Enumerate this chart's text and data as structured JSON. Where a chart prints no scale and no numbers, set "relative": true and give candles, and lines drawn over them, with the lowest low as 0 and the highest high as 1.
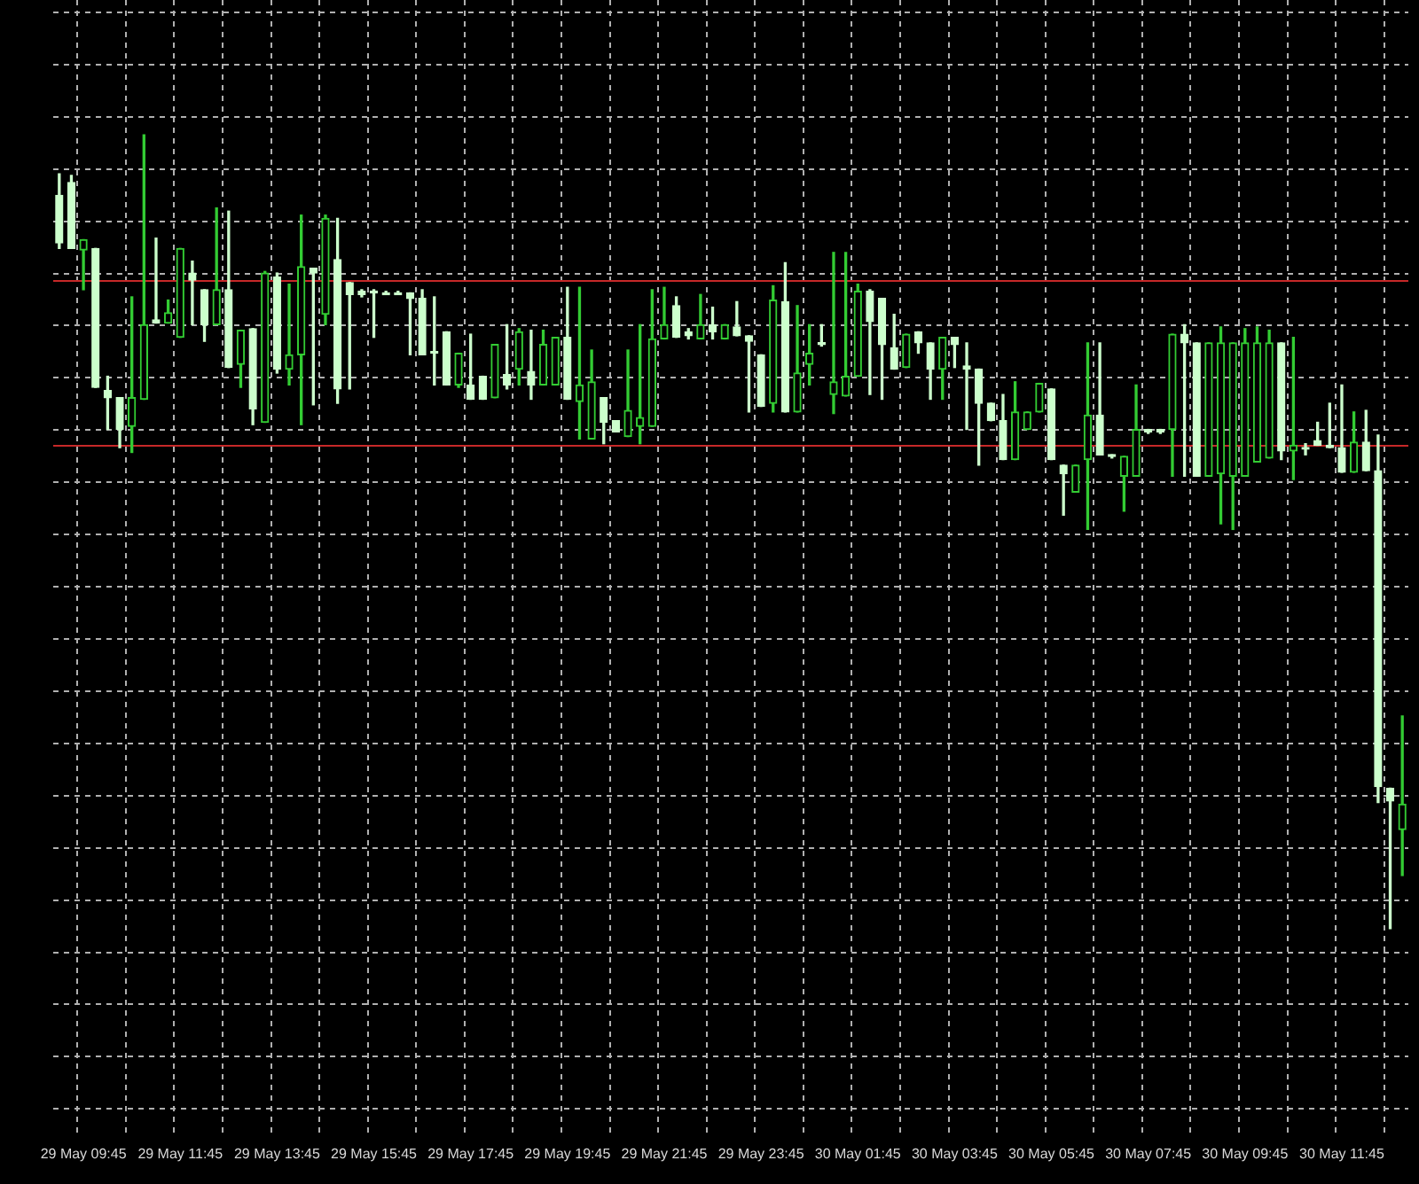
{
  "chart_data": {
    "type": "candlestick",
    "relative": true,
    "grid": true,
    "categories": [
      null,
      null,
      "29 May 09:45",
      null,
      null,
      null,
      null,
      null,
      null,
      null,
      "29 May 11:45",
      null,
      null,
      null,
      null,
      null,
      null,
      null,
      "29 May 13:45",
      null,
      null,
      null,
      null,
      null,
      null,
      null,
      "29 May 15:45",
      null,
      null,
      null,
      null,
      null,
      null,
      null,
      "29 May 17:45",
      null,
      null,
      null,
      null,
      null,
      null,
      null,
      "29 May 19:45",
      null,
      null,
      null,
      null,
      null,
      null,
      null,
      "29 May 21:45",
      null,
      null,
      null,
      null,
      null,
      null,
      null,
      "29 May 23:45",
      null,
      null,
      null,
      null,
      null,
      null,
      null,
      "30 May 01:45",
      null,
      null,
      null,
      null,
      null,
      null,
      null,
      "30 May 03:45",
      null,
      null,
      null,
      null,
      null,
      null,
      null,
      "30 May 05:45",
      null,
      null,
      null,
      null,
      null,
      null,
      null,
      "30 May 07:45",
      null,
      null,
      null,
      null,
      null,
      null,
      null,
      "30 May 09:45",
      null,
      null,
      null,
      null,
      null,
      null,
      null,
      "30 May 11:45",
      null,
      null,
      null,
      null,
      null
    ],
    "ohlc": [
      [
        0.924,
        0.951,
        0.857,
        0.864
      ],
      [
        0.94,
        0.949,
        0.857,
        0.857
      ],
      [
        0.855,
        0.868,
        0.805,
        0.868
      ],
      [
        0.857,
        0.857,
        0.682,
        0.682
      ],
      [
        0.678,
        0.696,
        0.629,
        0.669
      ],
      [
        0.669,
        0.669,
        0.606,
        0.629
      ],
      [
        0.633,
        0.796,
        0.6,
        0.669
      ],
      [
        0.667,
        1,
        0.667,
        0.761
      ],
      [
        0.767,
        0.87,
        0.763,
        0.763
      ],
      [
        0.763,
        0.792,
        0.763,
        0.776
      ],
      [
        0.745,
        0.857,
        0.745,
        0.857
      ],
      [
        0.826,
        0.841,
        0.761,
        0.817
      ],
      [
        0.805,
        0.805,
        0.74,
        0.761
      ],
      [
        0.761,
        0.908,
        0.761,
        0.805
      ],
      [
        0.805,
        0.904,
        0.707,
        0.707
      ],
      [
        0.711,
        0.754,
        0.682,
        0.754
      ],
      [
        0.756,
        0.756,
        0.635,
        0.655
      ],
      [
        0.638,
        0.828,
        0.638,
        0.826
      ],
      [
        0.821,
        0.826,
        0.7,
        0.705
      ],
      [
        0.705,
        0.812,
        0.685,
        0.723
      ],
      [
        0.723,
        0.899,
        0.635,
        0.834
      ],
      [
        0.832,
        0.832,
        0.66,
        0.826
      ],
      [
        0.774,
        0.899,
        0.761,
        0.895
      ],
      [
        0.843,
        0.895,
        0.662,
        0.68
      ],
      [
        0.814,
        0.814,
        0.68,
        0.799
      ],
      [
        0.803,
        0.805,
        0.796,
        0.799
      ],
      [
        0.803,
        0.805,
        0.745,
        0.801
      ],
      [
        0.801,
        0.803,
        0.799,
        0.801
      ],
      [
        0.801,
        0.803,
        0.799,
        0.801
      ],
      [
        0.801,
        0.801,
        0.723,
        0.794
      ],
      [
        0.794,
        0.805,
        0.723,
        0.723
      ],
      [
        0.727,
        0.796,
        0.685,
        0.725
      ],
      [
        0.752,
        0.752,
        0.685,
        0.685
      ],
      [
        0.685,
        0.725,
        0.682,
        0.725
      ],
      [
        0.685,
        0.749,
        0.667,
        0.667
      ],
      [
        0.696,
        0.696,
        0.667,
        0.667
      ],
      [
        0.669,
        0.736,
        0.669,
        0.736
      ],
      [
        0.698,
        0.761,
        0.68,
        0.685
      ],
      [
        0.705,
        0.756,
        0.685,
        0.752
      ],
      [
        0.702,
        0.754,
        0.667,
        0.685
      ],
      [
        0.685,
        0.754,
        0.685,
        0.736
      ],
      [
        0.685,
        0.745,
        0.685,
        0.745
      ],
      [
        0.745,
        0.808,
        0.667,
        0.667
      ],
      [
        0.664,
        0.808,
        0.617,
        0.685
      ],
      [
        0.617,
        0.729,
        0.617,
        0.689
      ],
      [
        0.669,
        0.669,
        0.611,
        0.638
      ],
      [
        0.64,
        0.64,
        0.626,
        0.626
      ],
      [
        0.62,
        0.729,
        0.62,
        0.653
      ],
      [
        0.633,
        0.761,
        0.611,
        0.644
      ],
      [
        0.633,
        0.805,
        0.633,
        0.743
      ],
      [
        0.743,
        0.808,
        0.743,
        0.761
      ],
      [
        0.785,
        0.796,
        0.745,
        0.745
      ],
      [
        0.752,
        0.756,
        0.743,
        0.747
      ],
      [
        0.743,
        0.799,
        0.743,
        0.761
      ],
      [
        0.761,
        0.783,
        0.743,
        0.752
      ],
      [
        0.743,
        0.761,
        0.743,
        0.761
      ],
      [
        0.758,
        0.79,
        0.747,
        0.747
      ],
      [
        0.747,
        0.747,
        0.651,
        0.74
      ],
      [
        0.723,
        0.723,
        0.658,
        0.658
      ],
      [
        0.662,
        0.81,
        0.651,
        0.792
      ],
      [
        0.79,
        0.839,
        0.651,
        0.651
      ],
      [
        0.651,
        0.785,
        0.651,
        0.7
      ],
      [
        0.711,
        0.761,
        0.685,
        0.725
      ],
      [
        0.738,
        0.761,
        0.734,
        0.736
      ],
      [
        0.673,
        0.852,
        0.649,
        0.689
      ],
      [
        0.671,
        0.852,
        0.671,
        0.696
      ],
      [
        0.696,
        0.812,
        0.696,
        0.803
      ],
      [
        0.803,
        0.805,
        0.673,
        0.765
      ],
      [
        0.794,
        0.794,
        0.667,
        0.736
      ],
      [
        0.732,
        0.774,
        0.705,
        0.705
      ],
      [
        0.707,
        0.749,
        0.707,
        0.749
      ],
      [
        0.752,
        0.752,
        0.725,
        0.738
      ],
      [
        0.738,
        0.738,
        0.667,
        0.705
      ],
      [
        0.705,
        0.745,
        0.667,
        0.745
      ],
      [
        0.745,
        0.745,
        0.707,
        0.736
      ],
      [
        0.709,
        0.738,
        0.629,
        0.705
      ],
      [
        0.705,
        0.705,
        0.584,
        0.662
      ],
      [
        0.662,
        0.662,
        0.64,
        0.64
      ],
      [
        0.64,
        0.673,
        0.591,
        0.591
      ],
      [
        0.591,
        0.689,
        0.591,
        0.651
      ],
      [
        0.629,
        0.651,
        0.629,
        0.651
      ],
      [
        0.651,
        0.687,
        0.651,
        0.687
      ],
      [
        0.68,
        0.68,
        0.591,
        0.591
      ],
      [
        0.584,
        0.584,
        0.521,
        0.573
      ],
      [
        0.55,
        0.584,
        0.55,
        0.584
      ],
      [
        0.591,
        0.738,
        0.503,
        0.647
      ],
      [
        0.647,
        0.738,
        0.597,
        0.597
      ],
      [
        0.597,
        0.597,
        0.593,
        0.595
      ],
      [
        0.57,
        0.595,
        0.526,
        0.595
      ],
      [
        0.57,
        0.685,
        0.57,
        0.629
      ],
      [
        0.629,
        0.629,
        0.624,
        0.626
      ],
      [
        0.629,
        0.629,
        0.624,
        0.626
      ],
      [
        0.629,
        0.749,
        0.57,
        0.749
      ],
      [
        0.749,
        0.761,
        0.57,
        0.738
      ],
      [
        0.738,
        0.738,
        0.57,
        0.57
      ],
      [
        0.57,
        0.738,
        0.57,
        0.738
      ],
      [
        0.573,
        0.758,
        0.51,
        0.738
      ],
      [
        0.57,
        0.738,
        0.503,
        0.738
      ],
      [
        0.57,
        0.756,
        0.57,
        0.738
      ],
      [
        0.588,
        0.758,
        0.588,
        0.738
      ],
      [
        0.593,
        0.754,
        0.593,
        0.738
      ],
      [
        0.738,
        0.738,
        0.591,
        0.602
      ],
      [
        0.602,
        0.745,
        0.566,
        0.609
      ],
      [
        0.606,
        0.611,
        0.597,
        0.604
      ],
      [
        0.615,
        0.638,
        0.609,
        0.609
      ],
      [
        0.609,
        0.662,
        0.606,
        0.606
      ],
      [
        0.606,
        0.685,
        0.575,
        0.575
      ],
      [
        0.575,
        0.651,
        0.575,
        0.613
      ],
      [
        0.613,
        0.653,
        0.577,
        0.577
      ],
      [
        0.577,
        0.622,
        0.159,
        0.179
      ],
      [
        0.177,
        0.177,
        0,
        0.161
      ],
      [
        0.125,
        0.268,
        0.067,
        0.157
      ]
    ],
    "colors": [
      "#ccffcc",
      "#ccffcc",
      "#33cc33",
      "#ccffcc",
      "#ccffcc",
      "#ccffcc",
      "#33cc33",
      "#33cc33",
      "#ccffcc",
      "#33cc33",
      "#33cc33",
      "#ccffcc",
      "#ccffcc",
      "#33cc33",
      "#ccffcc",
      "#33cc33",
      "#ccffcc",
      "#33cc33",
      "#ccffcc",
      "#33cc33",
      "#33cc33",
      "#ccffcc",
      "#33cc33",
      "#ccffcc",
      "#ccffcc",
      "#ccffcc",
      "#ccffcc",
      "#ccffcc",
      "#ccffcc",
      "#ccffcc",
      "#ccffcc",
      "#ccffcc",
      "#ccffcc",
      "#33cc33",
      "#ccffcc",
      "#ccffcc",
      "#33cc33",
      "#ccffcc",
      "#33cc33",
      "#ccffcc",
      "#33cc33",
      "#33cc33",
      "#ccffcc",
      "#33cc33",
      "#33cc33",
      "#ccffcc",
      "#ccffcc",
      "#33cc33",
      "#33cc33",
      "#33cc33",
      "#33cc33",
      "#ccffcc",
      "#ccffcc",
      "#33cc33",
      "#ccffcc",
      "#33cc33",
      "#ccffcc",
      "#ccffcc",
      "#ccffcc",
      "#33cc33",
      "#ccffcc",
      "#33cc33",
      "#33cc33",
      "#ccffcc",
      "#33cc33",
      "#33cc33",
      "#33cc33",
      "#ccffcc",
      "#ccffcc",
      "#ccffcc",
      "#33cc33",
      "#ccffcc",
      "#ccffcc",
      "#33cc33",
      "#ccffcc",
      "#ccffcc",
      "#ccffcc",
      "#ccffcc",
      "#ccffcc",
      "#33cc33",
      "#33cc33",
      "#33cc33",
      "#ccffcc",
      "#ccffcc",
      "#33cc33",
      "#33cc33",
      "#ccffcc",
      "#ccffcc",
      "#33cc33",
      "#33cc33",
      "#ccffcc",
      "#ccffcc",
      "#33cc33",
      "#ccffcc",
      "#ccffcc",
      "#33cc33",
      "#33cc33",
      "#33cc33",
      "#33cc33",
      "#33cc33",
      "#33cc33",
      "#ccffcc",
      "#33cc33",
      "#ccffcc",
      "#ccffcc",
      "#ccffcc",
      "#ccffcc",
      "#33cc33",
      "#ccffcc",
      "#ccffcc",
      "#ccffcc",
      "#33cc33"
    ],
    "ref_lines": [
      {
        "axis": "y",
        "value": 0.817,
        "color": "#c62828"
      },
      {
        "axis": "y",
        "value": 0.609,
        "color": "#c62828"
      }
    ]
  }
}
